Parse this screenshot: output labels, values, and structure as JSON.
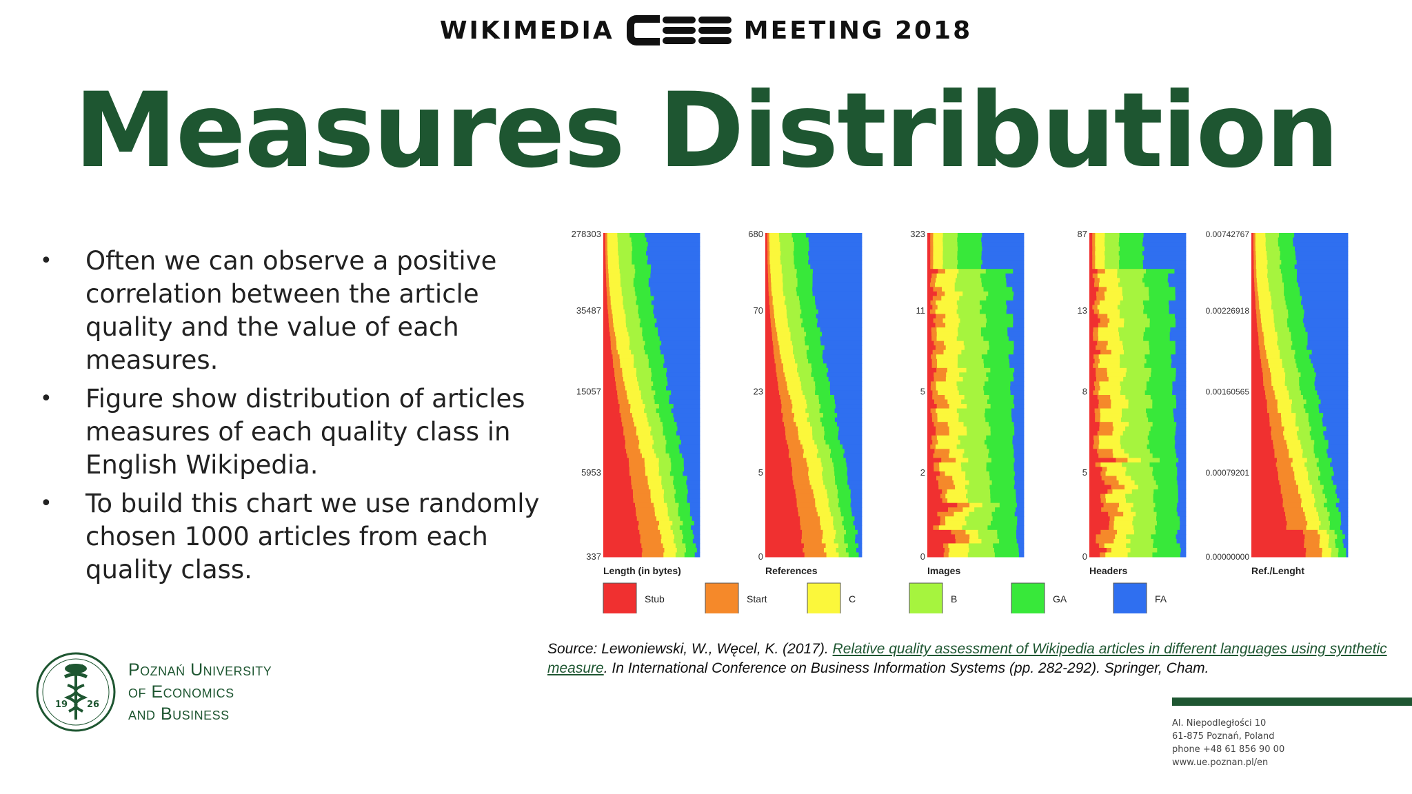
{
  "header": {
    "left_word": "WIKIMEDIA",
    "right_word": "MEETING 2018",
    "logo_text": "CEE"
  },
  "title": "Measures Distribution",
  "bullets": [
    "Often we can observe a positive correlation between the article quality and the value of each measures.",
    "Figure  show distribution of articles measures of each  quality class in English Wikipedia.",
    "To build this chart we use randomly chosen 1000 articles from each quality class."
  ],
  "chart_data": {
    "type": "area",
    "description_of_layout": "stacked distribution panels, one per measure",
    "panels": [
      {
        "xlabel": "Length (in bytes)",
        "ticks": [
          "278303",
          "35487",
          "15057",
          "5953",
          "337"
        ]
      },
      {
        "xlabel": "References",
        "ticks": [
          "680",
          "70",
          "23",
          "5",
          "0"
        ]
      },
      {
        "xlabel": "Images",
        "ticks": [
          "323",
          "11",
          "5",
          "2",
          "0"
        ]
      },
      {
        "xlabel": "Headers",
        "ticks": [
          "87",
          "13",
          "8",
          "5",
          "0"
        ]
      },
      {
        "xlabel": "Ref./Lenght",
        "ticks": [
          "0.00742767",
          "0.00226918",
          "0.00160565",
          "0.00079201",
          "0.00000000"
        ]
      }
    ],
    "series": [
      {
        "name": "Stub",
        "color": "#f03030"
      },
      {
        "name": "Start",
        "color": "#f5892a"
      },
      {
        "name": "C",
        "color": "#fbf73b"
      },
      {
        "name": "B",
        "color": "#a6f43e"
      },
      {
        "name": "GA",
        "color": "#38e83a"
      },
      {
        "name": "FA",
        "color": "#2f6ff0"
      }
    ]
  },
  "source": {
    "prefix": "Source: Lewoniewski, W., Węcel, K. (2017). ",
    "link_text": "Relative quality assessment of Wikipedia articles in different languages using synthetic measure",
    "suffix": ". In International Conference on Business Information Systems (pp. 282-292). Springer, Cham."
  },
  "university": {
    "line1": "Poznań University",
    "line2": "of Economics",
    "line3": "and Business",
    "seal_left": "19",
    "seal_right": "26"
  },
  "address": {
    "line1": "Al. Niepodległości 10",
    "line2": "61-875 Poznań, Poland",
    "line3": "phone +48 61 856 90 00",
    "line4": "www.ue.poznan.pl/en"
  }
}
